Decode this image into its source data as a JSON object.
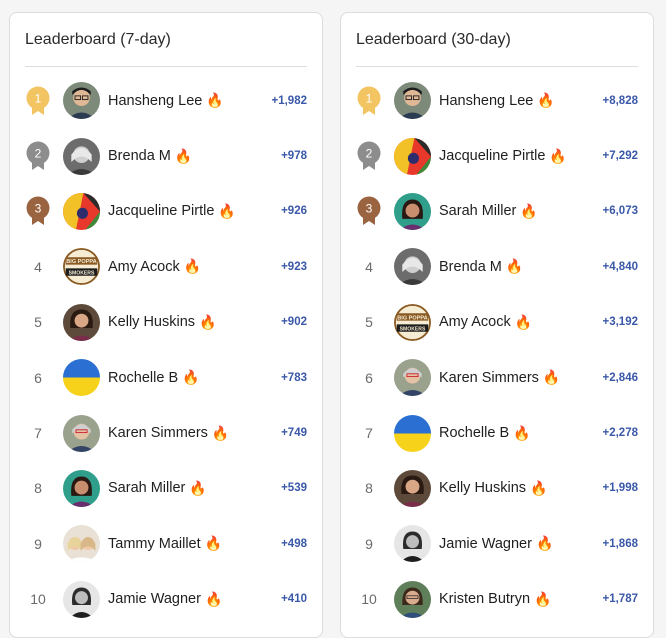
{
  "colors": {
    "gold": "#f2c462",
    "silver": "#8d8d8d",
    "bronze": "#9b6440",
    "score": "#3a58a8",
    "flame": "#f06a1c"
  },
  "flame_icon": "🔥",
  "leaderboards": [
    {
      "title": "Leaderboard (7-day)",
      "entries": [
        {
          "rank": "1",
          "name": "Hansheng Lee",
          "score": "+1,982",
          "avatar": "avatar-hansheng"
        },
        {
          "rank": "2",
          "name": "Brenda M",
          "score": "+978",
          "avatar": "avatar-brenda"
        },
        {
          "rank": "3",
          "name": "Jacqueline Pirtle",
          "score": "+926",
          "avatar": "avatar-jacqueline"
        },
        {
          "rank": "4",
          "name": "Amy Acock",
          "score": "+923",
          "avatar": "avatar-amy"
        },
        {
          "rank": "5",
          "name": "Kelly Huskins",
          "score": "+902",
          "avatar": "avatar-kelly"
        },
        {
          "rank": "6",
          "name": "Rochelle B",
          "score": "+783",
          "avatar": "avatar-rochelle"
        },
        {
          "rank": "7",
          "name": "Karen Simmers",
          "score": "+749",
          "avatar": "avatar-karen"
        },
        {
          "rank": "8",
          "name": "Sarah Miller",
          "score": "+539",
          "avatar": "avatar-sarah"
        },
        {
          "rank": "9",
          "name": "Tammy Maillet",
          "score": "+498",
          "avatar": "avatar-tammy"
        },
        {
          "rank": "10",
          "name": "Jamie Wagner",
          "score": "+410",
          "avatar": "avatar-jamie"
        }
      ]
    },
    {
      "title": "Leaderboard (30-day)",
      "entries": [
        {
          "rank": "1",
          "name": "Hansheng Lee",
          "score": "+8,828",
          "avatar": "avatar-hansheng"
        },
        {
          "rank": "2",
          "name": "Jacqueline Pirtle",
          "score": "+7,292",
          "avatar": "avatar-jacqueline"
        },
        {
          "rank": "3",
          "name": "Sarah Miller",
          "score": "+6,073",
          "avatar": "avatar-sarah"
        },
        {
          "rank": "4",
          "name": "Brenda M",
          "score": "+4,840",
          "avatar": "avatar-brenda"
        },
        {
          "rank": "5",
          "name": "Amy Acock",
          "score": "+3,192",
          "avatar": "avatar-amy"
        },
        {
          "rank": "6",
          "name": "Karen Simmers",
          "score": "+2,846",
          "avatar": "avatar-karen"
        },
        {
          "rank": "7",
          "name": "Rochelle B",
          "score": "+2,278",
          "avatar": "avatar-rochelle"
        },
        {
          "rank": "8",
          "name": "Kelly Huskins",
          "score": "+1,998",
          "avatar": "avatar-kelly"
        },
        {
          "rank": "9",
          "name": "Jamie Wagner",
          "score": "+1,868",
          "avatar": "avatar-jamie"
        },
        {
          "rank": "10",
          "name": "Kristen Butryn",
          "score": "+1,787",
          "avatar": "avatar-kristen"
        }
      ]
    }
  ]
}
